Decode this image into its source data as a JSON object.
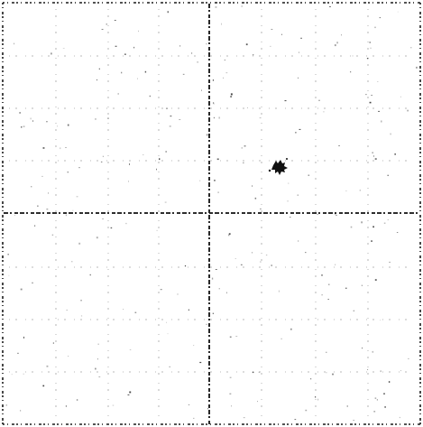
{
  "image": {
    "description_kind": "scanned-grid-sheet",
    "background_color": "#ffffff",
    "ink_color": "#1a1a1a",
    "marks": [
      {
        "name": "center-blot",
        "kind": "ink-spot"
      }
    ]
  }
}
